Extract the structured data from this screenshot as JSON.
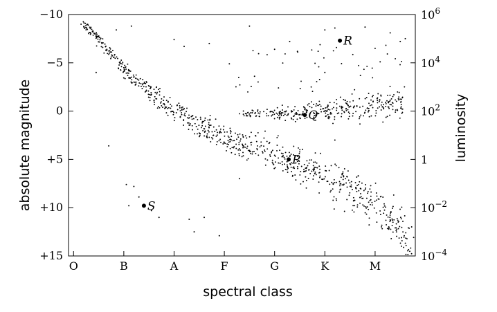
{
  "chart_data": {
    "type": "scatter",
    "title": "",
    "xlabel": "spectral class",
    "ylabel_left": "absolute magnitude",
    "ylabel_right": "luminosity",
    "x_categories": [
      "O",
      "B",
      "A",
      "F",
      "G",
      "K",
      "M"
    ],
    "xlim": [
      -0.1,
      6.8
    ],
    "ylim_magnitude": [
      15,
      -10
    ],
    "y_left_ticks": [
      "−10",
      "−5",
      "0",
      "+5",
      "+10",
      "+15"
    ],
    "y_left_tick_values": [
      -10,
      -5,
      0,
      5,
      10,
      15
    ],
    "y_right_ticks": [
      {
        "base": "10",
        "exp": "6",
        "magnitude": -10
      },
      {
        "base": "10",
        "exp": "4",
        "magnitude": -5
      },
      {
        "base": "10",
        "exp": "2",
        "magnitude": 0
      },
      {
        "base": "1",
        "exp": "",
        "magnitude": 5
      },
      {
        "base": "10",
        "exp": "−2",
        "magnitude": 10
      },
      {
        "base": "10",
        "exp": "−4",
        "magnitude": 15
      }
    ],
    "grid": false,
    "legend": "none",
    "labeled_points": [
      {
        "label": "P",
        "class": 4.28,
        "magnitude": 5.0
      },
      {
        "label": "Q",
        "class": 4.6,
        "magnitude": 0.4
      },
      {
        "label": "R",
        "class": 5.3,
        "magnitude": -7.3
      },
      {
        "label": "S",
        "class": 1.4,
        "magnitude": 9.8
      }
    ],
    "main_sequence": [
      {
        "class": 0.2,
        "magnitude": -9.3
      },
      {
        "class": 0.6,
        "magnitude": -6.8
      },
      {
        "class": 1.0,
        "magnitude": -4.3
      },
      {
        "class": 1.5,
        "magnitude": -2.0
      },
      {
        "class": 2.0,
        "magnitude": -0.2
      },
      {
        "class": 2.5,
        "magnitude": 1.5
      },
      {
        "class": 3.0,
        "magnitude": 2.7
      },
      {
        "class": 3.5,
        "magnitude": 3.7
      },
      {
        "class": 4.0,
        "magnitude": 4.6
      },
      {
        "class": 4.5,
        "magnitude": 5.6
      },
      {
        "class": 5.0,
        "magnitude": 6.8
      },
      {
        "class": 5.5,
        "magnitude": 8.0
      },
      {
        "class": 6.0,
        "magnitude": 9.6
      },
      {
        "class": 6.3,
        "magnitude": 11.0
      },
      {
        "class": 6.6,
        "magnitude": 13.2
      },
      {
        "class": 6.75,
        "magnitude": 14.7
      }
    ],
    "giant_branch": [
      {
        "class": 3.3,
        "magnitude": 0.3
      },
      {
        "class": 3.8,
        "magnitude": 0.2
      },
      {
        "class": 4.3,
        "magnitude": 0.3
      },
      {
        "class": 4.8,
        "magnitude": 0.0
      },
      {
        "class": 5.3,
        "magnitude": -0.3
      },
      {
        "class": 5.8,
        "magnitude": -0.5
      },
      {
        "class": 6.3,
        "magnitude": -0.7
      },
      {
        "class": 6.55,
        "magnitude": -0.6
      }
    ],
    "outliers": [
      {
        "class": 0.85,
        "magnitude": -8.4
      },
      {
        "class": 1.15,
        "magnitude": -8.8
      },
      {
        "class": 2.0,
        "magnitude": -7.4
      },
      {
        "class": 2.2,
        "magnitude": -6.7
      },
      {
        "class": 2.7,
        "magnitude": -7.0
      },
      {
        "class": 3.5,
        "magnitude": -8.8
      },
      {
        "class": 4.0,
        "magnitude": -6.4
      },
      {
        "class": 4.3,
        "magnitude": -7.2
      },
      {
        "class": 5.0,
        "magnitude": -8.4
      },
      {
        "class": 5.2,
        "magnitude": -8.6
      },
      {
        "class": 5.8,
        "magnitude": -8.7
      },
      {
        "class": 6.0,
        "magnitude": -6.5
      },
      {
        "class": 6.3,
        "magnitude": -8.1
      },
      {
        "class": 6.5,
        "magnitude": -7.2
      },
      {
        "class": 6.6,
        "magnitude": -7.5
      },
      {
        "class": 0.45,
        "magnitude": -4.0
      },
      {
        "class": 3.1,
        "magnitude": -4.9
      },
      {
        "class": 3.6,
        "magnitude": -3.6
      },
      {
        "class": 5.0,
        "magnitude": -4.0
      },
      {
        "class": 6.1,
        "magnitude": -5.1
      },
      {
        "class": 0.7,
        "magnitude": 3.6
      },
      {
        "class": 1.05,
        "magnitude": 7.6
      },
      {
        "class": 1.2,
        "magnitude": 7.8
      },
      {
        "class": 1.3,
        "magnitude": 8.9
      },
      {
        "class": 1.1,
        "magnitude": 9.8
      },
      {
        "class": 1.55,
        "magnitude": 10.3
      },
      {
        "class": 1.7,
        "magnitude": 11.0
      },
      {
        "class": 2.3,
        "magnitude": 11.2
      },
      {
        "class": 2.6,
        "magnitude": 11.0
      },
      {
        "class": 2.4,
        "magnitude": 12.5
      },
      {
        "class": 2.9,
        "magnitude": 12.9
      },
      {
        "class": 5.2,
        "magnitude": 3.0
      },
      {
        "class": 3.3,
        "magnitude": 7.0
      }
    ]
  }
}
